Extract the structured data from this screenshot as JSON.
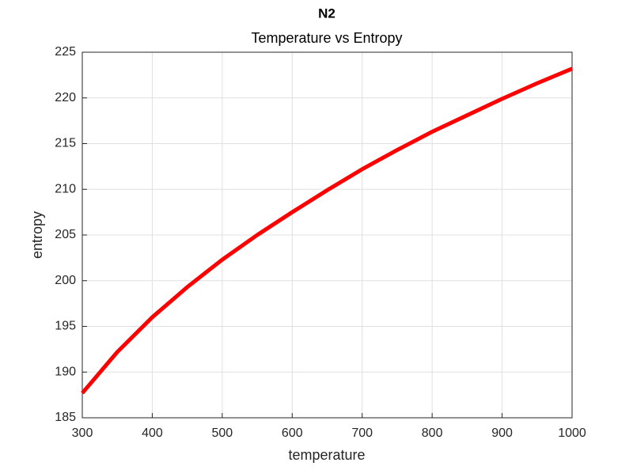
{
  "chart_data": {
    "type": "line",
    "title": "N2",
    "subtitle": "Temperature vs Entropy",
    "xlabel": "temperature",
    "ylabel": "entropy",
    "x": [
      300,
      350,
      400,
      450,
      500,
      550,
      600,
      650,
      700,
      750,
      800,
      850,
      900,
      950,
      1000
    ],
    "values": [
      187.7,
      192.2,
      196.0,
      199.3,
      202.3,
      205.0,
      207.5,
      209.9,
      212.2,
      214.3,
      216.3,
      218.1,
      219.9,
      221.6,
      223.2
    ],
    "color": "#ff0000",
    "xlim": [
      300,
      1000
    ],
    "xticks": [
      300,
      400,
      500,
      600,
      700,
      800,
      900,
      1000
    ],
    "ylim": [
      185,
      225
    ],
    "yticks": [
      185,
      190,
      195,
      200,
      205,
      210,
      215,
      220,
      225
    ],
    "grid": true
  }
}
